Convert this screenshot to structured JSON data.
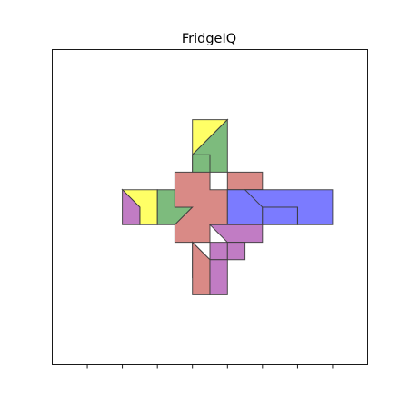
{
  "game": {
    "title": "FridgeIQ",
    "board": {
      "cells": 9,
      "x_ticks": [
        1,
        2,
        3,
        4,
        5,
        6,
        7,
        8
      ],
      "y_ticks": []
    },
    "colors": {
      "yellow": "#ffff66",
      "green": "#7dbb7d",
      "red": "#d98a86",
      "blue": "#7b7bff",
      "purple": "#c17cc4",
      "outline": "#3a3a3a"
    },
    "pieces": [
      {
        "name": "yellow-top-tri",
        "color": "yellow",
        "points": [
          [
            4,
            7
          ],
          [
            5,
            7
          ],
          [
            4,
            6
          ]
        ]
      },
      {
        "name": "green-top",
        "color": "green",
        "points": [
          [
            5,
            7
          ],
          [
            5,
            5.5
          ],
          [
            4.5,
            5.5
          ],
          [
            4.5,
            5
          ],
          [
            4,
            5
          ],
          [
            4,
            6
          ]
        ]
      },
      {
        "name": "green-inner",
        "color": "green",
        "points": [
          [
            4,
            6
          ],
          [
            4.5,
            6
          ],
          [
            4.5,
            5
          ],
          [
            4,
            5
          ]
        ]
      },
      {
        "name": "yellow-left",
        "color": "yellow",
        "points": [
          [
            2,
            5
          ],
          [
            3,
            5
          ],
          [
            3,
            4
          ],
          [
            2.5,
            4
          ],
          [
            2.5,
            4.5
          ]
        ]
      },
      {
        "name": "purple-left",
        "color": "purple",
        "points": [
          [
            2,
            5
          ],
          [
            2.5,
            4.5
          ],
          [
            2.5,
            4
          ],
          [
            2,
            4
          ]
        ]
      },
      {
        "name": "green-left",
        "color": "green",
        "points": [
          [
            3,
            5
          ],
          [
            3.5,
            5
          ],
          [
            3.5,
            4.5
          ],
          [
            4,
            4.5
          ],
          [
            3.5,
            4
          ],
          [
            3,
            4
          ]
        ]
      },
      {
        "name": "red-center",
        "color": "red",
        "points": [
          [
            3.5,
            5.5
          ],
          [
            4.5,
            5.5
          ],
          [
            4.5,
            5
          ],
          [
            5,
            5
          ],
          [
            5,
            4
          ],
          [
            4.5,
            4
          ],
          [
            4.5,
            3.5
          ],
          [
            3.5,
            3.5
          ],
          [
            3.5,
            4
          ],
          [
            4,
            4.5
          ],
          [
            3.5,
            4.5
          ]
        ]
      },
      {
        "name": "red-right-top",
        "color": "red",
        "points": [
          [
            5,
            5.5
          ],
          [
            6,
            5.5
          ],
          [
            6,
            5
          ],
          [
            5,
            5
          ]
        ]
      },
      {
        "name": "blue-right",
        "color": "blue",
        "points": [
          [
            5,
            5
          ],
          [
            6,
            5
          ],
          [
            6,
            4
          ],
          [
            5,
            4
          ]
        ]
      },
      {
        "name": "blue-bar-top",
        "color": "blue",
        "points": [
          [
            5.5,
            5
          ],
          [
            8,
            5
          ],
          [
            8,
            4
          ],
          [
            7,
            4
          ],
          [
            7,
            4.5
          ],
          [
            6,
            4.5
          ],
          [
            5.5,
            5
          ]
        ]
      },
      {
        "name": "blue-bar-bottom",
        "color": "blue",
        "points": [
          [
            6,
            4.5
          ],
          [
            7,
            4.5
          ],
          [
            7,
            4
          ],
          [
            6,
            4
          ]
        ]
      },
      {
        "name": "purple-bottom",
        "color": "purple",
        "points": [
          [
            4.5,
            4
          ],
          [
            6,
            4
          ],
          [
            6,
            3.5
          ],
          [
            5,
            3.5
          ],
          [
            5,
            3
          ],
          [
            4.5,
            3
          ],
          [
            4.5,
            3.5
          ],
          [
            5,
            3.5
          ]
        ]
      },
      {
        "name": "purple-bottom-l",
        "color": "purple",
        "points": [
          [
            5,
            3.5
          ],
          [
            5.5,
            3.5
          ],
          [
            5.5,
            3
          ],
          [
            5,
            3
          ]
        ]
      },
      {
        "name": "yellow-bottom",
        "color": "yellow",
        "points": [
          [
            4,
            3.5
          ],
          [
            4.5,
            3
          ],
          [
            4,
            2.5
          ]
        ]
      },
      {
        "name": "red-bottom",
        "color": "red",
        "points": [
          [
            4,
            3.5
          ],
          [
            4,
            2
          ],
          [
            4.5,
            2
          ],
          [
            4.5,
            3
          ]
        ]
      },
      {
        "name": "purple-bottom-r",
        "color": "purple",
        "points": [
          [
            4.5,
            3
          ],
          [
            5,
            3
          ],
          [
            5,
            2
          ],
          [
            4.5,
            2
          ]
        ]
      }
    ]
  }
}
